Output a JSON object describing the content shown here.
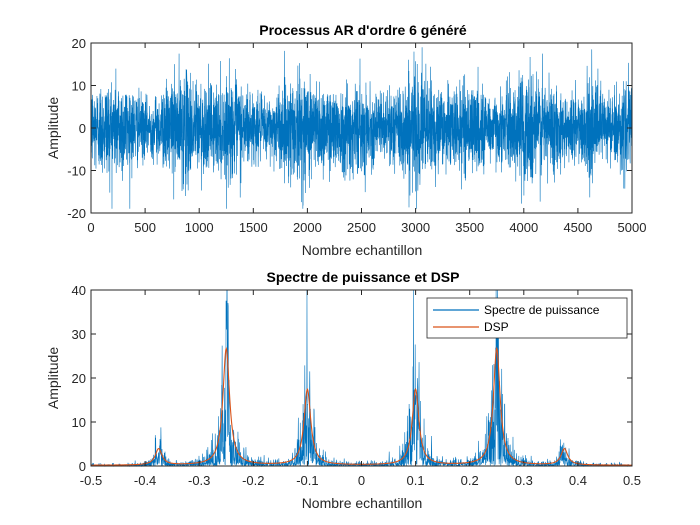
{
  "chart_data": [
    {
      "type": "line",
      "title": "Processus AR d'ordre 6 généré",
      "xlabel": "Nombre echantillon",
      "ylabel": "Amplitude",
      "xlim": [
        0,
        5000
      ],
      "ylim": [
        -20,
        20
      ],
      "xticks": [
        0,
        500,
        1000,
        1500,
        2000,
        2500,
        3000,
        3500,
        4000,
        4500,
        5000
      ],
      "yticks": [
        -20,
        -10,
        0,
        10,
        20
      ],
      "grid": false,
      "series": [
        {
          "color": "#0072BD",
          "sample_count": 5000,
          "typical_std": 6,
          "min_value": -19,
          "max_value": 19
        }
      ]
    },
    {
      "type": "line",
      "title": "Spectre de puissance et DSP",
      "xlabel": "Nombre echantillon",
      "ylabel": "Amplitude",
      "xlim": [
        -0.5,
        0.5
      ],
      "ylim": [
        0,
        40
      ],
      "xticks": [
        -0.5,
        -0.4,
        -0.3,
        -0.2,
        -0.1,
        0,
        0.1,
        0.2,
        0.3,
        0.4,
        0.5
      ],
      "yticks": [
        0,
        10,
        20,
        30,
        40
      ],
      "grid": false,
      "legend_position": "top-right",
      "series": [
        {
          "name": "Spectre de puissance",
          "color": "#0072BD",
          "peaks": [
            {
              "x": -0.375,
              "y": 3
            },
            {
              "x": -0.25,
              "y": 37.5
            },
            {
              "x": -0.1,
              "y": 14
            },
            {
              "x": 0.1,
              "y": 14
            },
            {
              "x": 0.25,
              "y": 30
            },
            {
              "x": 0.375,
              "y": 3
            }
          ]
        },
        {
          "name": "DSP",
          "color": "#D95319",
          "peaks": [
            {
              "x": -0.375,
              "y": 3.7
            },
            {
              "x": -0.25,
              "y": 26.5
            },
            {
              "x": -0.1,
              "y": 17.2
            },
            {
              "x": 0.1,
              "y": 17.2
            },
            {
              "x": 0.25,
              "y": 26.5
            },
            {
              "x": 0.375,
              "y": 3.7
            }
          ]
        }
      ]
    }
  ]
}
